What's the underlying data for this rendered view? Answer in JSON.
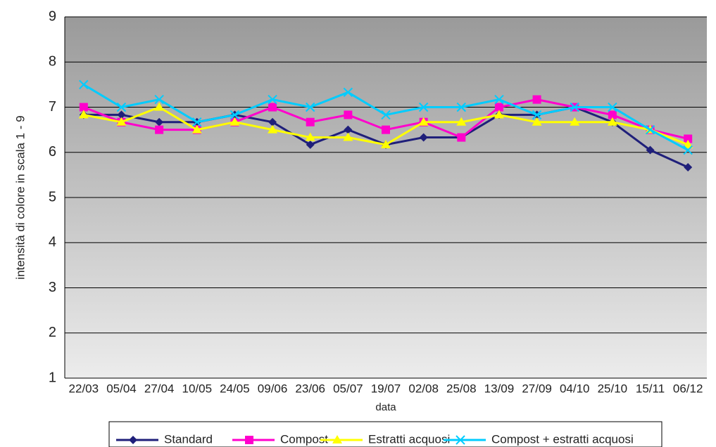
{
  "chart_data": {
    "type": "line",
    "x_label": "data",
    "y_label": "intensità di colore in scala 1 - 9",
    "categories": [
      "22/03",
      "05/04",
      "27/04",
      "10/05",
      "24/05",
      "09/06",
      "23/06",
      "05/07",
      "19/07",
      "02/08",
      "25/08",
      "13/09",
      "27/09",
      "04/10",
      "25/10",
      "15/11",
      "06/12"
    ],
    "series": [
      {
        "name": "Standard",
        "color": "#1f1f7a",
        "marker": "diamond",
        "values": [
          6.83,
          6.83,
          6.67,
          6.67,
          6.83,
          6.67,
          6.17,
          6.5,
          6.17,
          6.33,
          6.33,
          6.83,
          6.83,
          7.0,
          6.67,
          6.05,
          5.67
        ]
      },
      {
        "name": "Compost",
        "color": "#ff00cc",
        "marker": "square",
        "values": [
          7.0,
          6.67,
          6.5,
          6.5,
          6.67,
          7.0,
          6.67,
          6.83,
          6.5,
          6.67,
          6.33,
          7.0,
          7.17,
          7.0,
          6.83,
          6.5,
          6.3
        ]
      },
      {
        "name": "Estratti acquosi",
        "color": "#ffff00",
        "marker": "triangle",
        "values": [
          6.83,
          6.67,
          7.0,
          6.5,
          6.67,
          6.5,
          6.33,
          6.33,
          6.17,
          6.67,
          6.67,
          6.83,
          6.67,
          6.67,
          6.67,
          6.5,
          6.17
        ]
      },
      {
        "name": "Compost + estratti acquosi",
        "color": "#00ccff",
        "marker": "x",
        "values": [
          7.5,
          7.0,
          7.17,
          6.67,
          6.83,
          7.17,
          7.0,
          7.33,
          6.83,
          7.0,
          7.0,
          7.17,
          6.83,
          7.0,
          7.0,
          6.5,
          6.05
        ]
      }
    ],
    "ylim": [
      1,
      9
    ],
    "yticks": [
      1,
      2,
      3,
      4,
      5,
      6,
      7,
      8,
      9
    ],
    "grid": true,
    "legend": "bottom"
  }
}
